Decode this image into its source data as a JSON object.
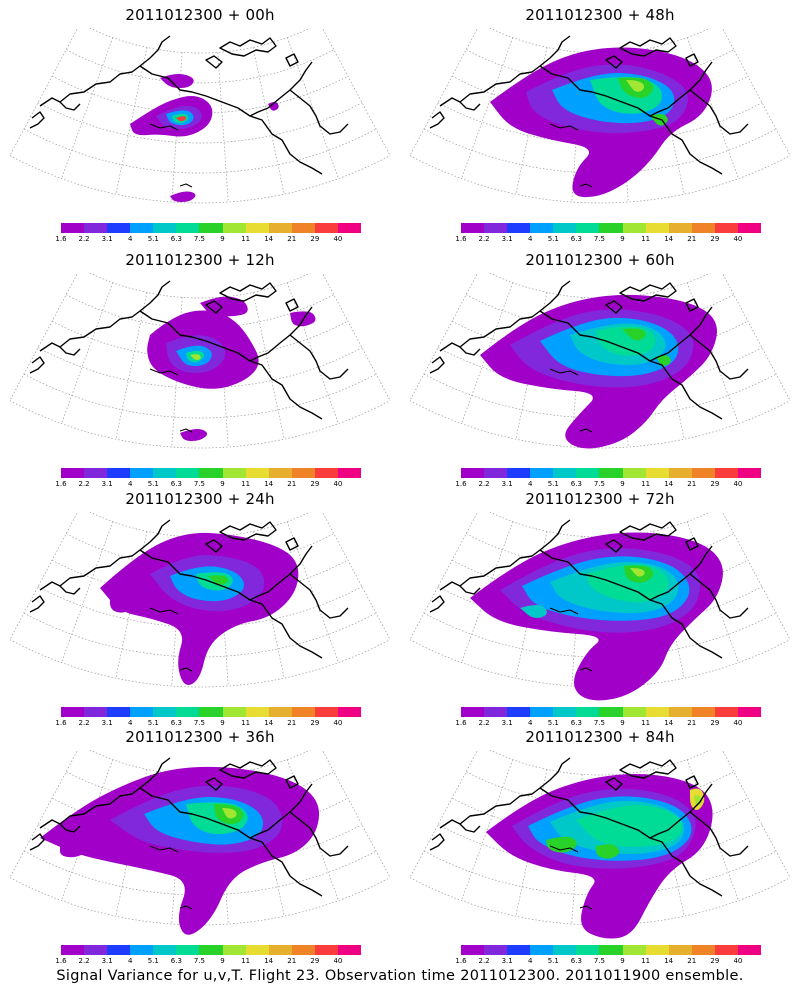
{
  "panels": [
    {
      "title": "2011012300 + 00h"
    },
    {
      "title": "2011012300 + 48h"
    },
    {
      "title": "2011012300 + 12h"
    },
    {
      "title": "2011012300 + 60h"
    },
    {
      "title": "2011012300 + 24h"
    },
    {
      "title": "2011012300 + 72h"
    },
    {
      "title": "2011012300 + 36h"
    },
    {
      "title": "2011012300 + 84h"
    }
  ],
  "colorbar": {
    "labels": [
      "1.6",
      "2.2",
      "3.1",
      "4",
      "5.1",
      "6.3",
      "7.5",
      "9",
      "11",
      "14",
      "21",
      "29",
      "40"
    ],
    "colors": [
      "#a000c8",
      "#8228dc",
      "#1e3cff",
      "#00a0ff",
      "#00c8c8",
      "#00dc96",
      "#28d228",
      "#a0e632",
      "#e6dc32",
      "#e6af2d",
      "#f08228",
      "#fa3c3c",
      "#f00082"
    ]
  },
  "caption": "Signal Variance for u,v,T. Flight 23. Observation time 2011012300. 2011011900 ensemble."
}
